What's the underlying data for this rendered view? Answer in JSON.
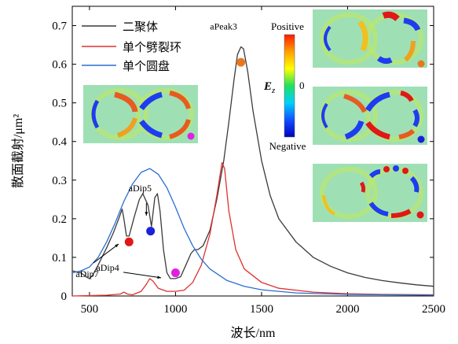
{
  "chart_data": {
    "type": "line",
    "xlabel": "波长/nm",
    "ylabel": "散面截射/μm²",
    "xlim": [
      400,
      2500
    ],
    "ylim": [
      0,
      0.75
    ],
    "x_ticks": [
      500,
      1000,
      1500,
      2000,
      2500
    ],
    "y_ticks": [
      0,
      0.1,
      0.2,
      0.3,
      0.4,
      0.5,
      0.6,
      0.7
    ],
    "y_tick_labels": [
      "0",
      "0.1",
      "0.2",
      "0.3",
      "0.4",
      "0.5",
      "0.6",
      "0.7"
    ],
    "legend_position": "top-left",
    "series": [
      {
        "name": "二聚体",
        "color": "#3a3a3a",
        "points": [
          [
            400,
            0.065
          ],
          [
            450,
            0.06
          ],
          [
            480,
            0.05
          ],
          [
            500,
            0.045
          ],
          [
            520,
            0.055
          ],
          [
            550,
            0.08
          ],
          [
            600,
            0.125
          ],
          [
            640,
            0.165
          ],
          [
            670,
            0.2
          ],
          [
            690,
            0.225
          ],
          [
            700,
            0.2
          ],
          [
            715,
            0.155
          ],
          [
            730,
            0.155
          ],
          [
            760,
            0.205
          ],
          [
            790,
            0.25
          ],
          [
            810,
            0.265
          ],
          [
            840,
            0.235
          ],
          [
            860,
            0.18
          ],
          [
            880,
            0.255
          ],
          [
            895,
            0.265
          ],
          [
            910,
            0.22
          ],
          [
            930,
            0.12
          ],
          [
            950,
            0.06
          ],
          [
            970,
            0.045
          ],
          [
            1000,
            0.045
          ],
          [
            1030,
            0.05
          ],
          [
            1060,
            0.08
          ],
          [
            1090,
            0.11
          ],
          [
            1110,
            0.12
          ],
          [
            1130,
            0.12
          ],
          [
            1160,
            0.13
          ],
          [
            1200,
            0.17
          ],
          [
            1240,
            0.25
          ],
          [
            1280,
            0.35
          ],
          [
            1310,
            0.45
          ],
          [
            1340,
            0.56
          ],
          [
            1360,
            0.625
          ],
          [
            1380,
            0.645
          ],
          [
            1395,
            0.64
          ],
          [
            1420,
            0.58
          ],
          [
            1450,
            0.48
          ],
          [
            1500,
            0.35
          ],
          [
            1550,
            0.26
          ],
          [
            1600,
            0.2
          ],
          [
            1700,
            0.14
          ],
          [
            1800,
            0.1
          ],
          [
            1900,
            0.077
          ],
          [
            2000,
            0.06
          ],
          [
            2100,
            0.048
          ],
          [
            2200,
            0.04
          ],
          [
            2300,
            0.034
          ],
          [
            2400,
            0.029
          ],
          [
            2500,
            0.025
          ]
        ]
      },
      {
        "name": "单个劈裂环",
        "color": "#e03030",
        "points": [
          [
            400,
            0.0
          ],
          [
            600,
            0.002
          ],
          [
            680,
            0.005
          ],
          [
            700,
            0.01
          ],
          [
            720,
            0.005
          ],
          [
            750,
            0.003
          ],
          [
            800,
            0.012
          ],
          [
            830,
            0.03
          ],
          [
            850,
            0.045
          ],
          [
            870,
            0.038
          ],
          [
            900,
            0.02
          ],
          [
            950,
            0.012
          ],
          [
            1000,
            0.012
          ],
          [
            1050,
            0.015
          ],
          [
            1100,
            0.035
          ],
          [
            1150,
            0.08
          ],
          [
            1200,
            0.16
          ],
          [
            1240,
            0.26
          ],
          [
            1270,
            0.345
          ],
          [
            1285,
            0.33
          ],
          [
            1310,
            0.22
          ],
          [
            1350,
            0.12
          ],
          [
            1400,
            0.07
          ],
          [
            1500,
            0.035
          ],
          [
            1600,
            0.02
          ],
          [
            1800,
            0.01
          ],
          [
            2000,
            0.006
          ],
          [
            2200,
            0.004
          ],
          [
            2500,
            0.003
          ]
        ]
      },
      {
        "name": "单个圆盘",
        "color": "#2a6fd0",
        "points": [
          [
            400,
            0.06
          ],
          [
            450,
            0.065
          ],
          [
            500,
            0.075
          ],
          [
            550,
            0.1
          ],
          [
            600,
            0.14
          ],
          [
            650,
            0.19
          ],
          [
            700,
            0.245
          ],
          [
            750,
            0.29
          ],
          [
            800,
            0.32
          ],
          [
            850,
            0.33
          ],
          [
            900,
            0.315
          ],
          [
            950,
            0.28
          ],
          [
            1000,
            0.23
          ],
          [
            1050,
            0.175
          ],
          [
            1100,
            0.13
          ],
          [
            1150,
            0.095
          ],
          [
            1200,
            0.07
          ],
          [
            1300,
            0.04
          ],
          [
            1400,
            0.025
          ],
          [
            1500,
            0.016
          ],
          [
            1700,
            0.008
          ],
          [
            2000,
            0.004
          ],
          [
            2500,
            0.002
          ]
        ]
      }
    ],
    "annotations": [
      {
        "label": "aPeak3",
        "x": 1360,
        "y": 0.645
      },
      {
        "label": "aDip5",
        "x": 858,
        "y": 0.2
      },
      {
        "label": "aDip7",
        "x": 715,
        "y": 0.155
      },
      {
        "label": "aDip4",
        "x": 980,
        "y": 0.045
      }
    ],
    "markers": [
      {
        "color": "#e8781e",
        "x": 1380,
        "y": 0.605
      },
      {
        "color": "#1a22d8",
        "x": 855,
        "y": 0.168
      },
      {
        "color": "#e01818",
        "x": 730,
        "y": 0.14
      },
      {
        "color": "#e020e0",
        "x": 1000,
        "y": 0.06
      }
    ],
    "colorbar": {
      "label": "E_z",
      "top_label": "Positive",
      "mid_label": "0",
      "bottom_label": "Negative",
      "gradient": [
        "#ff1a00",
        "#ffa000",
        "#ffff00",
        "#20e060",
        "#00d0ff",
        "#1050ff",
        "#0000c0"
      ]
    },
    "field_maps": [
      {
        "id": "field-map-magenta",
        "dot_color": "#e020e0"
      },
      {
        "id": "field-map-orange",
        "dot_color": "#e8781e"
      },
      {
        "id": "field-map-blue",
        "dot_color": "#1a22d8"
      },
      {
        "id": "field-map-red",
        "dot_color": "#e01818"
      }
    ]
  }
}
